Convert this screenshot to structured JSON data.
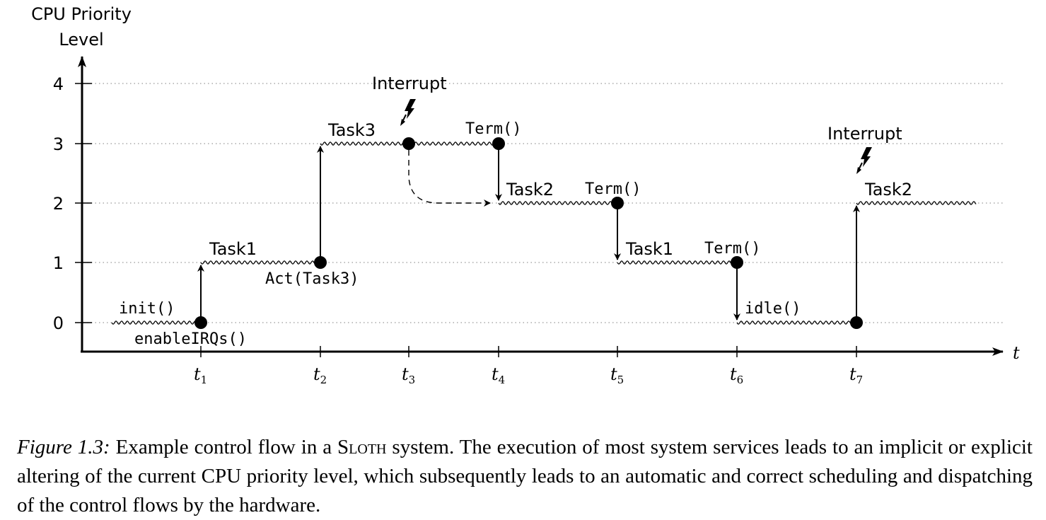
{
  "axis": {
    "y_label_line1": "CPU Priority",
    "y_label_line2": "Level",
    "x_label": "t",
    "y_ticks": [
      "0",
      "1",
      "2",
      "3",
      "4"
    ],
    "x_ticks": [
      {
        "base": "t",
        "sub": "1"
      },
      {
        "base": "t",
        "sub": "2"
      },
      {
        "base": "t",
        "sub": "3"
      },
      {
        "base": "t",
        "sub": "4"
      },
      {
        "base": "t",
        "sub": "5"
      },
      {
        "base": "t",
        "sub": "6"
      },
      {
        "base": "t",
        "sub": "7"
      }
    ]
  },
  "labels": {
    "init": "init()",
    "enable_irqs": "enableIRQs()",
    "task1_a": "Task1",
    "act_task3": "Act(Task3)",
    "task3": "Task3",
    "interrupt_1": "Interrupt",
    "term_1": "Term()",
    "task2_a": "Task2",
    "term_2": "Term()",
    "task1_b": "Task1",
    "term_3": "Term()",
    "idle": "idle()",
    "interrupt_2": "Interrupt",
    "task2_b": "Task2"
  },
  "caption": {
    "figure_label": "Figure 1.3:",
    "text_before": " Example control flow in a ",
    "system_name": "Sloth",
    "text_after": " system. The execution of most system services leads to an implicit or explicit altering of the current CPU priority level, which subsequently leads to an automatic and correct scheduling and dispatching of the control flows by the hardware."
  }
}
